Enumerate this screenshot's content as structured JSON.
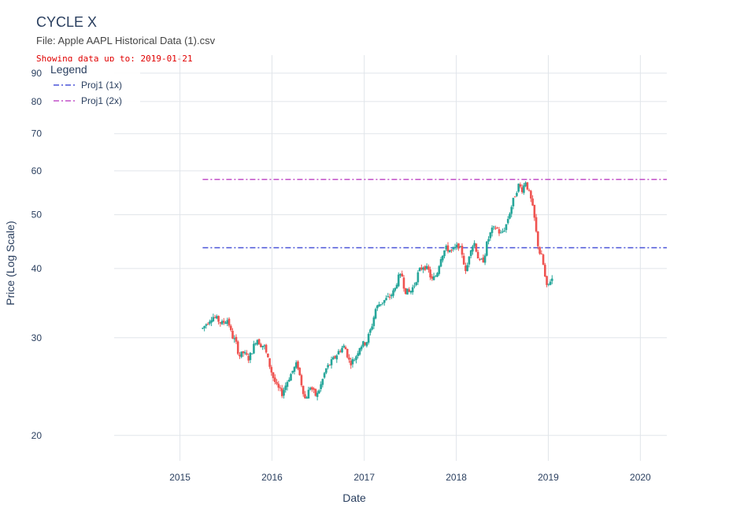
{
  "header": {
    "title": "CYCLE X",
    "file_label": "File: Apple AAPL Historical Data (1).csv",
    "note": "Showing data up to: 2019-01-21"
  },
  "chart_data": {
    "type": "candlestick",
    "xlabel": "Date",
    "ylabel": "Price (Log Scale)",
    "y_scale": "log",
    "ylim": [
      18,
      97
    ],
    "xlim": [
      "2014-04-15",
      "2020-04-15"
    ],
    "x_ticks": [
      "2015",
      "2016",
      "2017",
      "2018",
      "2019",
      "2020"
    ],
    "y_ticks": [
      20,
      30,
      40,
      50,
      60,
      70,
      80,
      90
    ],
    "grid": true,
    "legend_title": "Legend",
    "legend_position": "top-left",
    "colors": {
      "increasing": "#26a69a",
      "decreasing": "#ef5350",
      "grid": "#e1e5ea",
      "text": "#2a3f5f"
    },
    "lines": [
      {
        "name": "Proj1 (1x)",
        "y": 43.6,
        "x_start": "2015-04-01",
        "x_end": "2020-04-15",
        "color": "#4a54d8",
        "dash": "dashdot"
      },
      {
        "name": "Proj1 (2x)",
        "y": 57.9,
        "x_start": "2015-04-01",
        "x_end": "2020-04-15",
        "color": "#c250c8",
        "dash": "dashdot"
      }
    ],
    "price_path": [
      [
        "2015-04-01",
        31.2
      ],
      [
        "2015-04-20",
        32.0
      ],
      [
        "2015-05-10",
        32.8
      ],
      [
        "2015-05-25",
        32.5
      ],
      [
        "2015-06-15",
        31.8
      ],
      [
        "2015-07-10",
        32.4
      ],
      [
        "2015-07-25",
        30.3
      ],
      [
        "2015-08-10",
        29.5
      ],
      [
        "2015-08-24",
        27.8
      ],
      [
        "2015-09-10",
        28.2
      ],
      [
        "2015-10-01",
        27.5
      ],
      [
        "2015-10-15",
        28.5
      ],
      [
        "2015-11-01",
        30.0
      ],
      [
        "2015-11-15",
        29.2
      ],
      [
        "2015-12-01",
        29.0
      ],
      [
        "2015-12-15",
        27.5
      ],
      [
        "2016-01-05",
        25.5
      ],
      [
        "2016-01-20",
        24.5
      ],
      [
        "2016-02-10",
        23.8
      ],
      [
        "2016-03-01",
        25.0
      ],
      [
        "2016-03-20",
        26.0
      ],
      [
        "2016-04-10",
        27.0
      ],
      [
        "2016-04-25",
        25.0
      ],
      [
        "2016-05-12",
        23.2
      ],
      [
        "2016-06-01",
        24.5
      ],
      [
        "2016-06-25",
        23.5
      ],
      [
        "2016-07-15",
        24.8
      ],
      [
        "2016-08-01",
        26.3
      ],
      [
        "2016-08-20",
        27.0
      ],
      [
        "2016-09-10",
        27.8
      ],
      [
        "2016-09-25",
        28.5
      ],
      [
        "2016-10-15",
        29.0
      ],
      [
        "2016-11-05",
        27.0
      ],
      [
        "2016-11-25",
        27.5
      ],
      [
        "2016-12-15",
        29.0
      ],
      [
        "2017-01-10",
        29.5
      ],
      [
        "2017-01-31",
        31.5
      ],
      [
        "2017-02-15",
        33.8
      ],
      [
        "2017-03-01",
        34.5
      ],
      [
        "2017-03-20",
        35.0
      ],
      [
        "2017-04-10",
        35.5
      ],
      [
        "2017-05-01",
        36.5
      ],
      [
        "2017-05-15",
        38.5
      ],
      [
        "2017-06-01",
        38.8
      ],
      [
        "2017-06-10",
        36.5
      ],
      [
        "2017-07-01",
        36.2
      ],
      [
        "2017-07-20",
        37.5
      ],
      [
        "2017-08-05",
        39.5
      ],
      [
        "2017-08-25",
        40.5
      ],
      [
        "2017-09-15",
        39.5
      ],
      [
        "2017-09-25",
        38.0
      ],
      [
        "2017-10-15",
        39.0
      ],
      [
        "2017-11-01",
        42.0
      ],
      [
        "2017-11-20",
        43.5
      ],
      [
        "2017-12-15",
        43.0
      ],
      [
        "2018-01-10",
        44.0
      ],
      [
        "2018-01-25",
        42.5
      ],
      [
        "2018-02-08",
        39.0
      ],
      [
        "2018-02-25",
        43.5
      ],
      [
        "2018-03-15",
        44.5
      ],
      [
        "2018-04-02",
        41.0
      ],
      [
        "2018-04-20",
        41.5
      ],
      [
        "2018-05-03",
        44.5
      ],
      [
        "2018-05-20",
        46.8
      ],
      [
        "2018-06-10",
        47.5
      ],
      [
        "2018-06-25",
        46.0
      ],
      [
        "2018-07-15",
        47.5
      ],
      [
        "2018-08-01",
        50.5
      ],
      [
        "2018-08-20",
        54.0
      ],
      [
        "2018-09-05",
        56.5
      ],
      [
        "2018-09-20",
        55.5
      ],
      [
        "2018-10-03",
        57.5
      ],
      [
        "2018-10-15",
        55.0
      ],
      [
        "2018-10-25",
        53.0
      ],
      [
        "2018-11-05",
        50.0
      ],
      [
        "2018-11-15",
        46.0
      ],
      [
        "2018-11-25",
        43.0
      ],
      [
        "2018-12-05",
        42.0
      ],
      [
        "2018-12-15",
        40.0
      ],
      [
        "2018-12-24",
        36.8
      ],
      [
        "2019-01-03",
        37.5
      ],
      [
        "2019-01-10",
        38.2
      ],
      [
        "2019-01-21",
        38.5
      ]
    ]
  }
}
